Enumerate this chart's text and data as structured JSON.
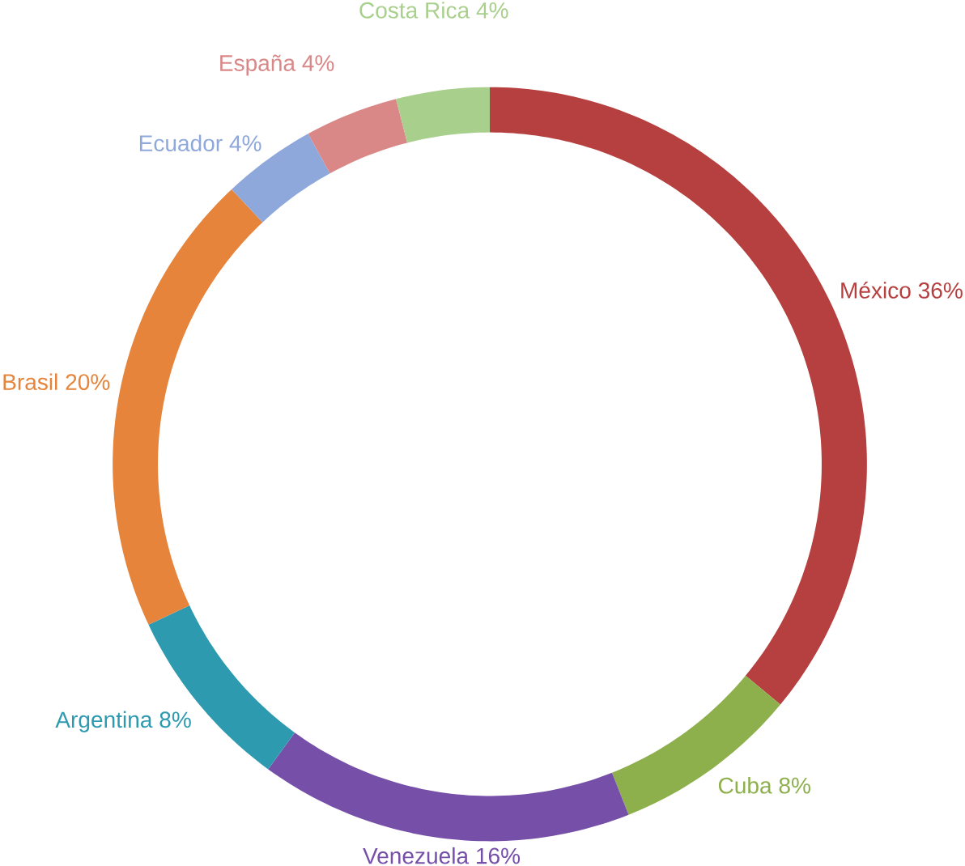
{
  "chart_data": {
    "type": "donut",
    "categories": [
      "México",
      "Cuba",
      "Venezuela",
      "Argentina",
      "Brasil",
      "Ecuador",
      "España",
      "Costa Rica"
    ],
    "values": [
      36,
      8,
      16,
      8,
      20,
      4,
      4,
      4
    ],
    "value_labels": [
      "36%",
      "8%",
      "16%",
      "8%",
      "20%",
      "4%",
      "4%",
      "4%"
    ],
    "colors": [
      "#b5403f",
      "#8db04c",
      "#7650a8",
      "#2e9ab0",
      "#e5843a",
      "#8ea8dc",
      "#d98787",
      "#a8cf8c"
    ]
  }
}
